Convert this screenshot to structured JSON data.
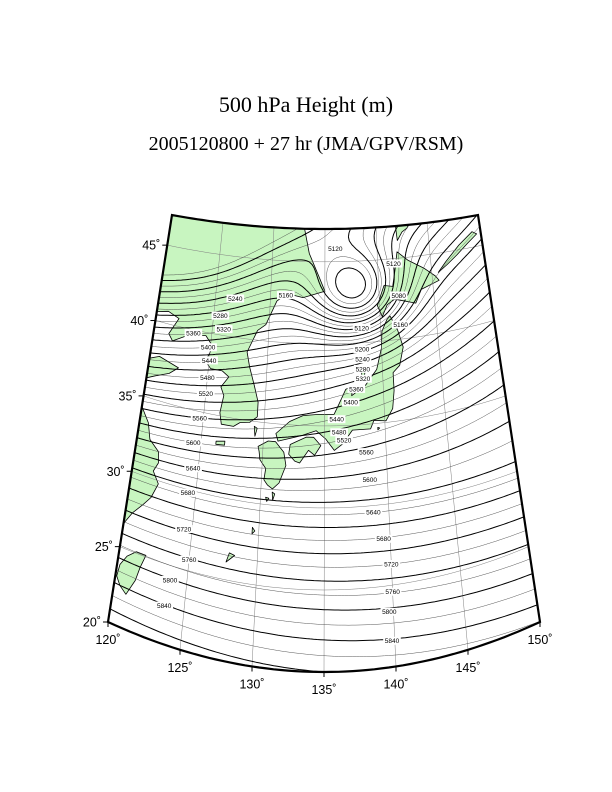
{
  "title": "500 hPa Height (m)",
  "subtitle": "2005120800 + 27 hr (JMA/GPV/RSM)",
  "colors": {
    "land": "#c8f5c0",
    "coast": "#000000",
    "grid": "#808080",
    "contour_major": "#000000",
    "contour_minor": "#444444"
  },
  "map": {
    "projection": "conic (trapezoid), lon 120°–150°, lat 20°–47°",
    "lon_ticks": [
      {
        "value": 120,
        "label": "120˚"
      },
      {
        "value": 125,
        "label": "125˚"
      },
      {
        "value": 130,
        "label": "130˚"
      },
      {
        "value": 135,
        "label": "135˚"
      },
      {
        "value": 140,
        "label": "140˚"
      },
      {
        "value": 145,
        "label": "145˚"
      },
      {
        "value": 150,
        "label": "150˚"
      }
    ],
    "lat_ticks": [
      {
        "value": 20,
        "label": "20˚"
      },
      {
        "value": 25,
        "label": "25˚"
      },
      {
        "value": 30,
        "label": "30˚"
      },
      {
        "value": 35,
        "label": "35˚"
      },
      {
        "value": 40,
        "label": "40˚"
      },
      {
        "value": 45,
        "label": "45˚"
      }
    ]
  },
  "contour_labels": [
    {
      "text": "5120",
      "lon": 136.0,
      "lat": 45.8
    },
    {
      "text": "5120",
      "lon": 141.5,
      "lat": 44.7
    },
    {
      "text": "5080",
      "lon": 141.8,
      "lat": 42.7
    },
    {
      "text": "5120",
      "lon": 138.3,
      "lat": 40.9
    },
    {
      "text": "5160",
      "lon": 141.8,
      "lat": 40.9
    },
    {
      "text": "5160",
      "lon": 131.4,
      "lat": 42.9
    },
    {
      "text": "5200",
      "lon": 138.3,
      "lat": 39.6
    },
    {
      "text": "5240",
      "lon": 126.8,
      "lat": 42.4
    },
    {
      "text": "5240",
      "lon": 138.3,
      "lat": 39.0
    },
    {
      "text": "5280",
      "lon": 125.6,
      "lat": 41.2
    },
    {
      "text": "5280",
      "lon": 138.3,
      "lat": 38.4
    },
    {
      "text": "5320",
      "lon": 126.0,
      "lat": 40.4
    },
    {
      "text": "5320",
      "lon": 138.3,
      "lat": 37.8
    },
    {
      "text": "5360",
      "lon": 123.4,
      "lat": 39.8
    },
    {
      "text": "5360",
      "lon": 137.7,
      "lat": 37.2
    },
    {
      "text": "5400",
      "lon": 124.8,
      "lat": 39.1
    },
    {
      "text": "5400",
      "lon": 137.2,
      "lat": 36.4
    },
    {
      "text": "5440",
      "lon": 125.0,
      "lat": 38.3
    },
    {
      "text": "5440",
      "lon": 136.0,
      "lat": 35.4
    },
    {
      "text": "5480",
      "lon": 125.0,
      "lat": 37.2
    },
    {
      "text": "5480",
      "lon": 136.2,
      "lat": 34.6
    },
    {
      "text": "5520",
      "lon": 125.0,
      "lat": 36.2
    },
    {
      "text": "5520",
      "lon": 136.6,
      "lat": 34.1
    },
    {
      "text": "5560",
      "lon": 124.7,
      "lat": 34.6
    },
    {
      "text": "5560",
      "lon": 138.4,
      "lat": 33.3
    },
    {
      "text": "5600",
      "lon": 124.4,
      "lat": 33.0
    },
    {
      "text": "5600",
      "lon": 138.6,
      "lat": 31.6
    },
    {
      "text": "5640",
      "lon": 124.6,
      "lat": 31.4
    },
    {
      "text": "5640",
      "lon": 138.8,
      "lat": 29.6
    },
    {
      "text": "5680",
      "lon": 124.4,
      "lat": 29.8
    },
    {
      "text": "5680",
      "lon": 139.5,
      "lat": 27.9
    },
    {
      "text": "5720",
      "lon": 124.4,
      "lat": 27.5
    },
    {
      "text": "5720",
      "lon": 140.0,
      "lat": 26.3
    },
    {
      "text": "5760",
      "lon": 125.0,
      "lat": 25.7
    },
    {
      "text": "5760",
      "lon": 140.0,
      "lat": 24.6
    },
    {
      "text": "5800",
      "lon": 123.8,
      "lat": 24.1
    },
    {
      "text": "5800",
      "lon": 139.7,
      "lat": 23.4
    },
    {
      "text": "5840",
      "lon": 123.6,
      "lat": 22.4
    },
    {
      "text": "5840",
      "lon": 139.8,
      "lat": 21.6
    }
  ]
}
